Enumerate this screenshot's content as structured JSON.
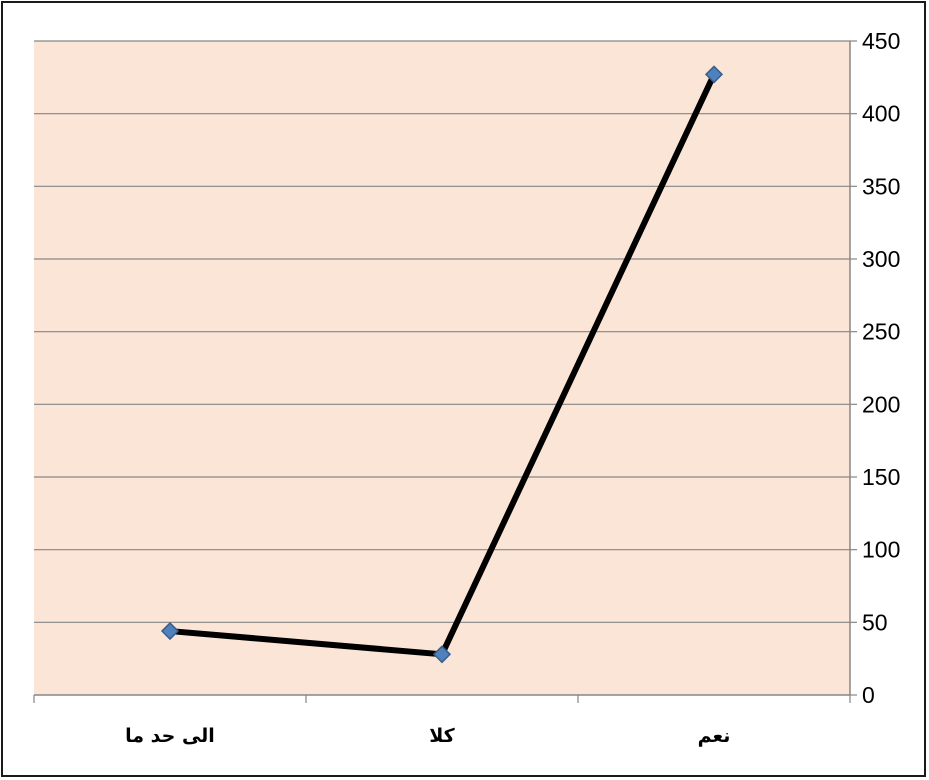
{
  "chart_data": {
    "type": "line",
    "title": "",
    "xlabel": "",
    "ylabel": "",
    "categories": [
      "الى حد ما",
      "كلا",
      "نعم"
    ],
    "series": [
      {
        "values": [
          44,
          28,
          427
        ]
      }
    ],
    "ylim": [
      0,
      450
    ],
    "yticks": [
      0,
      50,
      100,
      150,
      200,
      250,
      300,
      350,
      400,
      450
    ],
    "y_axis_side": "right",
    "grid": true,
    "legend": "none",
    "colors": {
      "plot_background": "#fbe5d6",
      "line": "#000000",
      "marker": "#4f81bd",
      "marker_edge": "#385d8a",
      "gridline": "#868686",
      "frame": "#1a1a1a"
    }
  }
}
